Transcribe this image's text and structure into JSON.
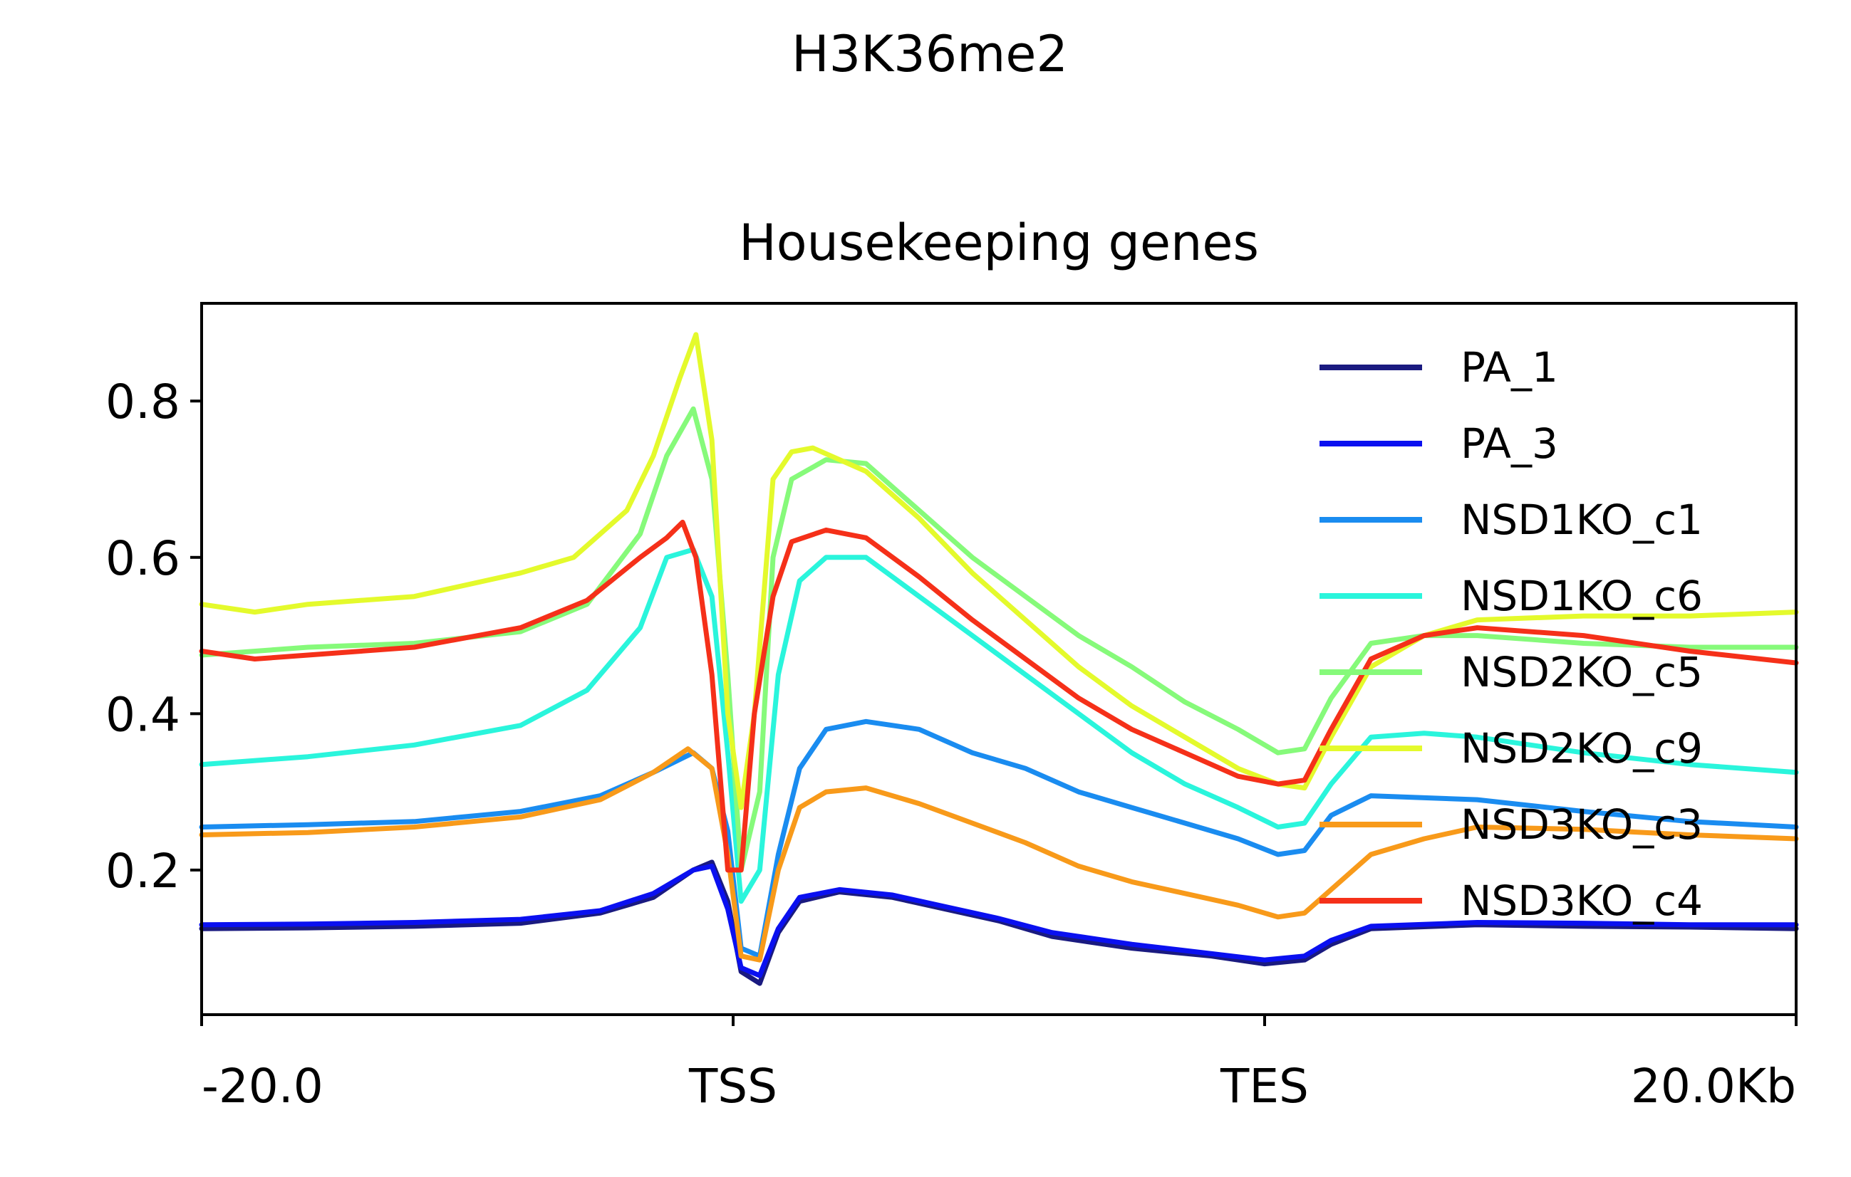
{
  "chart_data": {
    "type": "line",
    "suptitle": "H3K36me2",
    "title": "Housekeeping genes",
    "xlabel": "",
    "ylabel": "",
    "ylim": [
      0.015,
      0.925
    ],
    "yticks": [
      0.2,
      0.4,
      0.6,
      0.8
    ],
    "ytick_labels": [
      "0.2",
      "0.4",
      "0.6",
      "0.8"
    ],
    "xlim": [
      0,
      60
    ],
    "xticks": [
      0,
      20,
      40,
      60
    ],
    "xtick_labels": [
      "-20.0",
      "TSS",
      "TES",
      "20.0Kb"
    ],
    "grid": false,
    "legend_position": "top-right",
    "series": [
      {
        "name": "PA_1",
        "color": "#1a1a80",
        "points": [
          [
            0,
            0.125
          ],
          [
            4,
            0.126
          ],
          [
            8,
            0.128
          ],
          [
            12,
            0.132
          ],
          [
            15,
            0.145
          ],
          [
            17,
            0.165
          ],
          [
            18.5,
            0.2
          ],
          [
            19.2,
            0.21
          ],
          [
            19.8,
            0.16
          ],
          [
            20.3,
            0.07
          ],
          [
            21,
            0.055
          ],
          [
            21.7,
            0.12
          ],
          [
            22.5,
            0.16
          ],
          [
            24,
            0.172
          ],
          [
            26,
            0.165
          ],
          [
            28,
            0.15
          ],
          [
            30,
            0.135
          ],
          [
            32,
            0.115
          ],
          [
            35,
            0.1
          ],
          [
            38,
            0.09
          ],
          [
            40,
            0.08
          ],
          [
            41.5,
            0.085
          ],
          [
            42.5,
            0.105
          ],
          [
            44,
            0.125
          ],
          [
            48,
            0.13
          ],
          [
            52,
            0.128
          ],
          [
            56,
            0.127
          ],
          [
            60,
            0.125
          ]
        ]
      },
      {
        "name": "PA_3",
        "color": "#0a10f0",
        "points": [
          [
            0,
            0.13
          ],
          [
            4,
            0.131
          ],
          [
            8,
            0.133
          ],
          [
            12,
            0.137
          ],
          [
            15,
            0.148
          ],
          [
            17,
            0.17
          ],
          [
            18.5,
            0.2
          ],
          [
            19.2,
            0.205
          ],
          [
            19.8,
            0.15
          ],
          [
            20.3,
            0.075
          ],
          [
            21,
            0.065
          ],
          [
            21.7,
            0.125
          ],
          [
            22.5,
            0.165
          ],
          [
            24,
            0.175
          ],
          [
            26,
            0.168
          ],
          [
            28,
            0.153
          ],
          [
            30,
            0.138
          ],
          [
            32,
            0.12
          ],
          [
            35,
            0.105
          ],
          [
            38,
            0.093
          ],
          [
            40,
            0.085
          ],
          [
            41.5,
            0.09
          ],
          [
            42.5,
            0.11
          ],
          [
            44,
            0.128
          ],
          [
            48,
            0.133
          ],
          [
            52,
            0.132
          ],
          [
            56,
            0.13
          ],
          [
            60,
            0.13
          ]
        ]
      },
      {
        "name": "NSD1KO_c1",
        "color": "#1a8cf0",
        "points": [
          [
            0,
            0.255
          ],
          [
            4,
            0.258
          ],
          [
            8,
            0.262
          ],
          [
            12,
            0.275
          ],
          [
            15,
            0.295
          ],
          [
            17,
            0.325
          ],
          [
            18.5,
            0.35
          ],
          [
            19.2,
            0.33
          ],
          [
            19.8,
            0.25
          ],
          [
            20.3,
            0.1
          ],
          [
            21,
            0.09
          ],
          [
            21.7,
            0.22
          ],
          [
            22.5,
            0.33
          ],
          [
            23.5,
            0.38
          ],
          [
            25,
            0.39
          ],
          [
            27,
            0.38
          ],
          [
            29,
            0.35
          ],
          [
            31,
            0.33
          ],
          [
            33,
            0.3
          ],
          [
            35,
            0.28
          ],
          [
            37,
            0.26
          ],
          [
            39,
            0.24
          ],
          [
            40.5,
            0.22
          ],
          [
            41.5,
            0.225
          ],
          [
            42.5,
            0.27
          ],
          [
            44,
            0.295
          ],
          [
            48,
            0.29
          ],
          [
            52,
            0.275
          ],
          [
            56,
            0.262
          ],
          [
            60,
            0.255
          ]
        ]
      },
      {
        "name": "NSD1KO_c6",
        "color": "#2af5dc",
        "points": [
          [
            0,
            0.335
          ],
          [
            4,
            0.345
          ],
          [
            8,
            0.36
          ],
          [
            12,
            0.385
          ],
          [
            14.5,
            0.43
          ],
          [
            16.5,
            0.51
          ],
          [
            17.5,
            0.6
          ],
          [
            18.5,
            0.61
          ],
          [
            19.2,
            0.55
          ],
          [
            19.8,
            0.35
          ],
          [
            20.3,
            0.16
          ],
          [
            21,
            0.2
          ],
          [
            21.7,
            0.45
          ],
          [
            22.5,
            0.57
          ],
          [
            23.5,
            0.6
          ],
          [
            25,
            0.6
          ],
          [
            27,
            0.55
          ],
          [
            29,
            0.5
          ],
          [
            31,
            0.45
          ],
          [
            33,
            0.4
          ],
          [
            35,
            0.35
          ],
          [
            37,
            0.31
          ],
          [
            39,
            0.28
          ],
          [
            40.5,
            0.255
          ],
          [
            41.5,
            0.26
          ],
          [
            42.5,
            0.31
          ],
          [
            44,
            0.37
          ],
          [
            46,
            0.375
          ],
          [
            48,
            0.37
          ],
          [
            52,
            0.35
          ],
          [
            56,
            0.335
          ],
          [
            60,
            0.325
          ]
        ]
      },
      {
        "name": "NSD2KO_c5",
        "color": "#86fa7a",
        "points": [
          [
            0,
            0.475
          ],
          [
            4,
            0.485
          ],
          [
            8,
            0.49
          ],
          [
            12,
            0.505
          ],
          [
            14.5,
            0.54
          ],
          [
            16.5,
            0.63
          ],
          [
            17.5,
            0.73
          ],
          [
            18.5,
            0.79
          ],
          [
            19.2,
            0.7
          ],
          [
            19.8,
            0.45
          ],
          [
            20.3,
            0.2
          ],
          [
            21,
            0.3
          ],
          [
            21.5,
            0.6
          ],
          [
            22.2,
            0.7
          ],
          [
            23.5,
            0.725
          ],
          [
            25,
            0.72
          ],
          [
            27,
            0.66
          ],
          [
            29,
            0.6
          ],
          [
            31,
            0.55
          ],
          [
            33,
            0.5
          ],
          [
            35,
            0.46
          ],
          [
            37,
            0.415
          ],
          [
            39,
            0.38
          ],
          [
            40.5,
            0.35
          ],
          [
            41.5,
            0.355
          ],
          [
            42.5,
            0.42
          ],
          [
            44,
            0.49
          ],
          [
            46,
            0.5
          ],
          [
            48,
            0.5
          ],
          [
            52,
            0.49
          ],
          [
            56,
            0.485
          ],
          [
            60,
            0.485
          ]
        ]
      },
      {
        "name": "NSD2KO_c9",
        "color": "#e4fa2c",
        "points": [
          [
            0,
            0.54
          ],
          [
            2,
            0.53
          ],
          [
            4,
            0.54
          ],
          [
            8,
            0.55
          ],
          [
            12,
            0.58
          ],
          [
            14,
            0.6
          ],
          [
            16,
            0.66
          ],
          [
            17,
            0.73
          ],
          [
            18,
            0.83
          ],
          [
            18.6,
            0.885
          ],
          [
            19.2,
            0.75
          ],
          [
            19.8,
            0.4
          ],
          [
            20.3,
            0.28
          ],
          [
            20.8,
            0.4
          ],
          [
            21.5,
            0.7
          ],
          [
            22.2,
            0.735
          ],
          [
            23,
            0.74
          ],
          [
            25,
            0.71
          ],
          [
            27,
            0.65
          ],
          [
            29,
            0.58
          ],
          [
            31,
            0.52
          ],
          [
            33,
            0.46
          ],
          [
            35,
            0.41
          ],
          [
            37,
            0.37
          ],
          [
            39,
            0.33
          ],
          [
            40.5,
            0.31
          ],
          [
            41.5,
            0.305
          ],
          [
            42.5,
            0.37
          ],
          [
            44,
            0.46
          ],
          [
            46,
            0.5
          ],
          [
            48,
            0.52
          ],
          [
            52,
            0.525
          ],
          [
            56,
            0.525
          ],
          [
            60,
            0.53
          ]
        ]
      },
      {
        "name": "NSD3KO_c3",
        "color": "#f89a1a",
        "points": [
          [
            0,
            0.245
          ],
          [
            4,
            0.248
          ],
          [
            8,
            0.255
          ],
          [
            12,
            0.268
          ],
          [
            15,
            0.29
          ],
          [
            17,
            0.325
          ],
          [
            18.3,
            0.355
          ],
          [
            19.2,
            0.33
          ],
          [
            19.8,
            0.22
          ],
          [
            20.3,
            0.09
          ],
          [
            21,
            0.085
          ],
          [
            21.7,
            0.2
          ],
          [
            22.5,
            0.28
          ],
          [
            23.5,
            0.3
          ],
          [
            25,
            0.305
          ],
          [
            27,
            0.285
          ],
          [
            29,
            0.26
          ],
          [
            31,
            0.235
          ],
          [
            33,
            0.205
          ],
          [
            35,
            0.185
          ],
          [
            37,
            0.17
          ],
          [
            39,
            0.155
          ],
          [
            40.5,
            0.14
          ],
          [
            41.5,
            0.145
          ],
          [
            42.5,
            0.175
          ],
          [
            44,
            0.22
          ],
          [
            46,
            0.24
          ],
          [
            48,
            0.255
          ],
          [
            52,
            0.252
          ],
          [
            56,
            0.245
          ],
          [
            60,
            0.24
          ]
        ]
      },
      {
        "name": "NSD3KO_c4",
        "color": "#f53019",
        "points": [
          [
            0,
            0.48
          ],
          [
            2,
            0.47
          ],
          [
            4,
            0.475
          ],
          [
            8,
            0.485
          ],
          [
            12,
            0.51
          ],
          [
            14.5,
            0.545
          ],
          [
            16.5,
            0.6
          ],
          [
            17.5,
            0.625
          ],
          [
            18.1,
            0.645
          ],
          [
            18.6,
            0.6
          ],
          [
            19.2,
            0.45
          ],
          [
            19.8,
            0.2
          ],
          [
            20.3,
            0.2
          ],
          [
            20.8,
            0.4
          ],
          [
            21.5,
            0.55
          ],
          [
            22.2,
            0.62
          ],
          [
            23.5,
            0.635
          ],
          [
            25,
            0.625
          ],
          [
            27,
            0.575
          ],
          [
            29,
            0.52
          ],
          [
            31,
            0.47
          ],
          [
            33,
            0.42
          ],
          [
            35,
            0.38
          ],
          [
            37,
            0.35
          ],
          [
            39,
            0.32
          ],
          [
            40.5,
            0.31
          ],
          [
            41.5,
            0.315
          ],
          [
            42.5,
            0.38
          ],
          [
            44,
            0.47
          ],
          [
            46,
            0.5
          ],
          [
            48,
            0.51
          ],
          [
            52,
            0.5
          ],
          [
            56,
            0.48
          ],
          [
            60,
            0.465
          ]
        ]
      }
    ]
  }
}
